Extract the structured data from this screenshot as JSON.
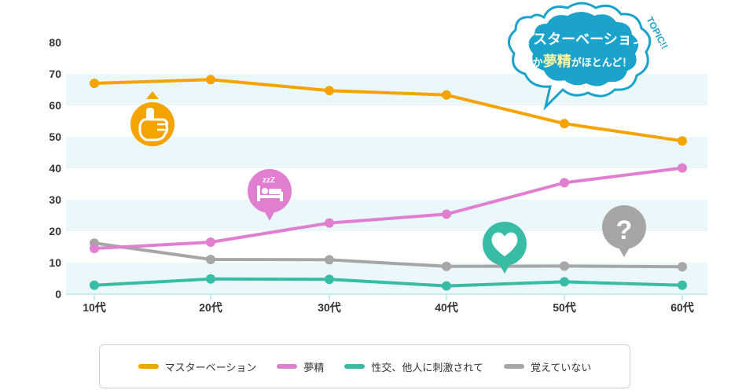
{
  "chart_data": {
    "type": "line",
    "categories": [
      "10代",
      "20代",
      "30代",
      "40代",
      "50代",
      "60代"
    ],
    "ylim": [
      0,
      80
    ],
    "yticks": [
      0,
      10,
      20,
      30,
      40,
      50,
      60,
      70,
      80
    ],
    "grid": "alternating-bands",
    "legend_position": "bottom",
    "series": [
      {
        "name": "マスターベーション",
        "color": "#f5a300",
        "values": [
          67,
          68.2,
          64.7,
          63.3,
          54.2,
          48.7
        ]
      },
      {
        "name": "夢精",
        "color": "#e07fd0",
        "values": [
          14.5,
          16.5,
          22.6,
          25.4,
          35.4,
          40.1
        ]
      },
      {
        "name": "性交、他人に刺激されて",
        "color": "#38bca5",
        "values": [
          2.8,
          4.8,
          4.7,
          2.6,
          3.9,
          2.8
        ]
      },
      {
        "name": "覚えていない",
        "color": "#a6a6a6",
        "values": [
          16.2,
          11.0,
          10.9,
          8.8,
          8.9,
          8.7
        ]
      }
    ],
    "band_color": "#eaf8fb",
    "annotation": {
      "line1": "マスターベーション",
      "line2_prefix": "か",
      "line2_emph": "夢精",
      "line2_suffix": "がほとんど！",
      "badge": "TOPIC!!",
      "bubble_color": "#1ba3cc"
    },
    "icons": [
      {
        "name": "hand-icon",
        "color": "#f5a300"
      },
      {
        "name": "sleeping-bed-icon",
        "color": "#e07fd0",
        "text": "zzZ"
      },
      {
        "name": "heart-icon",
        "color": "#38bca5"
      },
      {
        "name": "question-icon",
        "color": "#a6a6a6",
        "text": "?"
      }
    ]
  }
}
